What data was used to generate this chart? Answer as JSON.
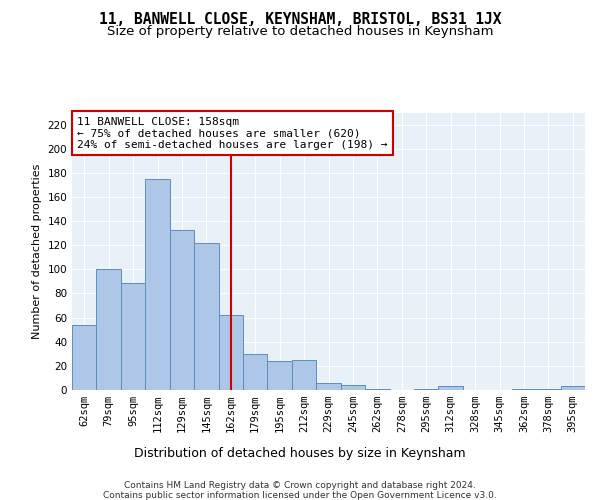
{
  "title": "11, BANWELL CLOSE, KEYNSHAM, BRISTOL, BS31 1JX",
  "subtitle": "Size of property relative to detached houses in Keynsham",
  "xlabel": "Distribution of detached houses by size in Keynsham",
  "ylabel": "Number of detached properties",
  "categories": [
    "62sqm",
    "79sqm",
    "95sqm",
    "112sqm",
    "129sqm",
    "145sqm",
    "162sqm",
    "179sqm",
    "195sqm",
    "212sqm",
    "229sqm",
    "245sqm",
    "262sqm",
    "278sqm",
    "295sqm",
    "312sqm",
    "328sqm",
    "345sqm",
    "362sqm",
    "378sqm",
    "395sqm"
  ],
  "values": [
    54,
    100,
    89,
    175,
    133,
    122,
    62,
    30,
    24,
    25,
    6,
    4,
    1,
    0,
    1,
    3,
    0,
    0,
    1,
    1,
    3
  ],
  "bar_color": "#aec6e8",
  "bar_edge_color": "#5a8fc2",
  "highlight_index": 6,
  "highlight_color": "#cc0000",
  "annotation_line1": "11 BANWELL CLOSE: 158sqm",
  "annotation_line2": "← 75% of detached houses are smaller (620)",
  "annotation_line3": "24% of semi-detached houses are larger (198) →",
  "annotation_box_color": "#ffffff",
  "annotation_box_edge": "#cc0000",
  "ylim": [
    0,
    230
  ],
  "yticks": [
    0,
    20,
    40,
    60,
    80,
    100,
    120,
    140,
    160,
    180,
    200,
    220
  ],
  "bg_color": "#e8f0f8",
  "grid_color": "#ffffff",
  "footer_line1": "Contains HM Land Registry data © Crown copyright and database right 2024.",
  "footer_line2": "Contains public sector information licensed under the Open Government Licence v3.0.",
  "title_fontsize": 10.5,
  "subtitle_fontsize": 9.5,
  "xlabel_fontsize": 9,
  "ylabel_fontsize": 8,
  "tick_fontsize": 7.5,
  "annotation_fontsize": 8,
  "footer_fontsize": 6.5
}
